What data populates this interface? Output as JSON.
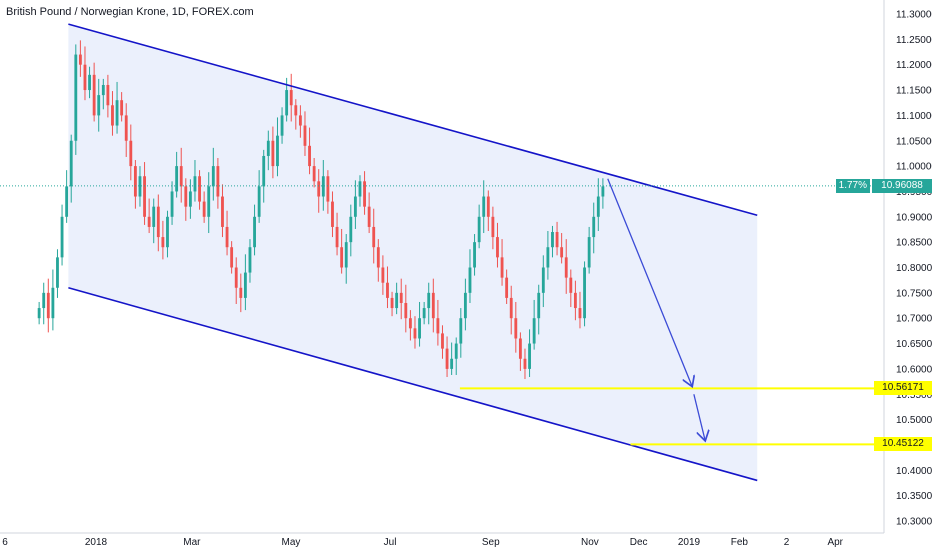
{
  "title": "British Pound / Norwegian Krone, 1D, FOREX.com",
  "colors": {
    "up": "#26a69a",
    "down": "#ef5350",
    "channel_line": "#1414c8",
    "channel_fill": "#e6ecfb",
    "level": "#ffff00",
    "arrow": "#3b4bd6",
    "current_price": "#26a69a",
    "axis_text": "#131722",
    "axis_border": "#d1d4dc"
  },
  "chart_data": {
    "type": "candlestick",
    "symbol": "British Pound / Norwegian Krone",
    "interval": "1D",
    "source": "FOREX.com",
    "ylim": [
      10.275,
      11.31
    ],
    "yticks": [
      "11.30000",
      "11.25000",
      "11.20000",
      "11.15000",
      "11.10000",
      "11.05000",
      "11.00000",
      "10.95000",
      "10.90000",
      "10.85000",
      "10.80000",
      "10.75000",
      "10.70000",
      "10.65000",
      "10.60000",
      "10.55000",
      "10.50000",
      "10.45000",
      "10.40000",
      "10.35000",
      "10.30000"
    ],
    "xticks": [
      "6",
      "2018",
      "Mar",
      "May",
      "Jul",
      "Sep",
      "Nov",
      "Dec",
      "2019",
      "Feb",
      "2",
      "Apr"
    ],
    "current_price": "10.96088",
    "current_change": "1.77%",
    "levels": [
      {
        "label": "10.56171",
        "value": 10.56171
      },
      {
        "label": "10.45122",
        "value": 10.45122
      }
    ],
    "channel": {
      "upper": [
        {
          "date": "2017-12-15",
          "price": 11.28
        },
        {
          "date": "2019-02-12",
          "price": 10.903
        }
      ],
      "lower": [
        {
          "date": "2017-12-15",
          "price": 10.76
        },
        {
          "date": "2019-02-12",
          "price": 10.38
        }
      ]
    },
    "projection_arrows": [
      {
        "from": {
          "date": "2018-11-12",
          "price": 10.975
        },
        "to": {
          "date": "2019-01-03",
          "price": 10.565
        }
      },
      {
        "from": {
          "date": "2019-01-04",
          "price": 10.55
        },
        "to": {
          "date": "2019-01-11",
          "price": 10.458
        }
      }
    ],
    "closes": [
      10.72,
      10.75,
      10.7,
      10.76,
      10.82,
      10.9,
      10.96,
      11.05,
      11.22,
      11.2,
      11.15,
      11.18,
      11.1,
      11.14,
      11.16,
      11.12,
      11.08,
      11.13,
      11.1,
      11.05,
      11.0,
      10.94,
      10.98,
      10.9,
      10.88,
      10.92,
      10.86,
      10.84,
      10.9,
      10.95,
      11.0,
      10.96,
      10.92,
      10.95,
      10.98,
      10.93,
      10.9,
      10.96,
      11.0,
      10.94,
      10.88,
      10.84,
      10.8,
      10.76,
      10.74,
      10.79,
      10.84,
      10.9,
      10.96,
      11.02,
      11.05,
      11.0,
      11.06,
      11.1,
      11.15,
      11.12,
      11.1,
      11.08,
      11.04,
      11.0,
      10.97,
      10.94,
      10.98,
      10.93,
      10.88,
      10.84,
      10.8,
      10.85,
      10.9,
      10.94,
      10.97,
      10.92,
      10.88,
      10.84,
      10.8,
      10.77,
      10.74,
      10.72,
      10.75,
      10.73,
      10.7,
      10.68,
      10.66,
      10.7,
      10.72,
      10.75,
      10.7,
      10.67,
      10.64,
      10.6,
      10.62,
      10.65,
      10.7,
      10.75,
      10.8,
      10.85,
      10.9,
      10.94,
      10.9,
      10.86,
      10.82,
      10.78,
      10.74,
      10.7,
      10.66,
      10.62,
      10.6,
      10.65,
      10.7,
      10.75,
      10.8,
      10.84,
      10.87,
      10.84,
      10.82,
      10.78,
      10.75,
      10.72,
      10.7,
      10.8,
      10.86,
      10.9,
      10.94,
      10.96
    ],
    "close_dates": [
      "2017-11-27",
      "2018-11-09"
    ]
  }
}
